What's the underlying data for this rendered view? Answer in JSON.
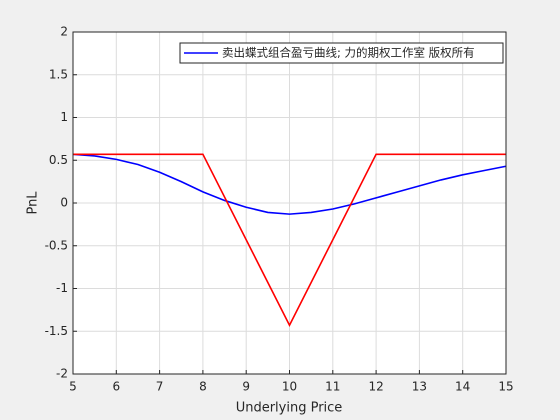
{
  "chart_data": {
    "type": "line",
    "xlabel": "Underlying Price",
    "ylabel": "PnL",
    "xlim": [
      5,
      15
    ],
    "ylim": [
      -2,
      2
    ],
    "xticks": [
      5,
      6,
      7,
      8,
      9,
      10,
      11,
      12,
      13,
      14,
      15
    ],
    "yticks": [
      -2,
      -1.5,
      -1,
      -0.5,
      0,
      0.5,
      1,
      1.5,
      2
    ],
    "grid": true,
    "legend": "northeast",
    "series": [
      {
        "name": "卖出蝶式组合盈亏曲线; 力的期权工作室 版权所有",
        "color": "#0000ff",
        "x": [
          5,
          5.5,
          6,
          6.5,
          7,
          7.5,
          8,
          8.5,
          9,
          9.5,
          10,
          10.5,
          11,
          11.5,
          12,
          12.5,
          13,
          13.5,
          14,
          14.5,
          15
        ],
        "values": [
          0.57,
          0.55,
          0.51,
          0.45,
          0.36,
          0.25,
          0.13,
          0.03,
          -0.05,
          -0.11,
          -0.13,
          -0.11,
          -0.07,
          -0.01,
          0.06,
          0.13,
          0.2,
          0.27,
          0.33,
          0.38,
          0.43
        ]
      },
      {
        "name": null,
        "color": "#ff0000",
        "x": [
          5,
          8,
          10,
          12,
          15
        ],
        "values": [
          0.57,
          0.57,
          -1.43,
          0.57,
          0.57
        ]
      }
    ]
  }
}
